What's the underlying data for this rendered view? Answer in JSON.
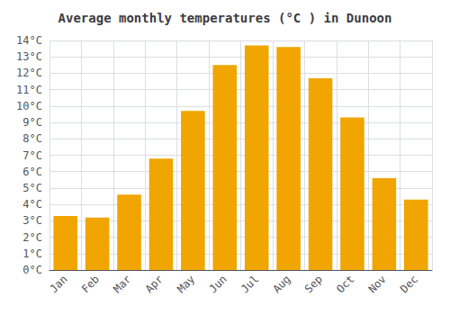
{
  "chart_data": {
    "type": "bar",
    "title": "Average monthly temperatures (°C ) in Dunoon",
    "categories": [
      "Jan",
      "Feb",
      "Mar",
      "Apr",
      "May",
      "Jun",
      "Jul",
      "Aug",
      "Sep",
      "Oct",
      "Nov",
      "Dec"
    ],
    "values": [
      3.3,
      3.2,
      4.6,
      6.8,
      9.7,
      12.5,
      13.7,
      13.6,
      11.7,
      9.3,
      5.6,
      4.3
    ],
    "color": "#F0A500",
    "ylim": [
      0,
      14
    ],
    "yticks": [
      {
        "value": 0,
        "label": "0°C"
      },
      {
        "value": 1,
        "label": "1°C"
      },
      {
        "value": 2,
        "label": "2°C"
      },
      {
        "value": 3,
        "label": "3°C"
      },
      {
        "value": 4,
        "label": "4°C"
      },
      {
        "value": 5,
        "label": "5°C"
      },
      {
        "value": 6,
        "label": "6°C"
      },
      {
        "value": 7,
        "label": "7°C"
      },
      {
        "value": 8,
        "label": "8°C"
      },
      {
        "value": 9,
        "label": "9°C"
      },
      {
        "value": 10,
        "label": "10°C"
      },
      {
        "value": 11,
        "label": "11°C"
      },
      {
        "value": 12,
        "label": "12°C"
      },
      {
        "value": 13,
        "label": "13°C"
      },
      {
        "value": 14,
        "label": "14°C"
      }
    ],
    "grid": true
  }
}
